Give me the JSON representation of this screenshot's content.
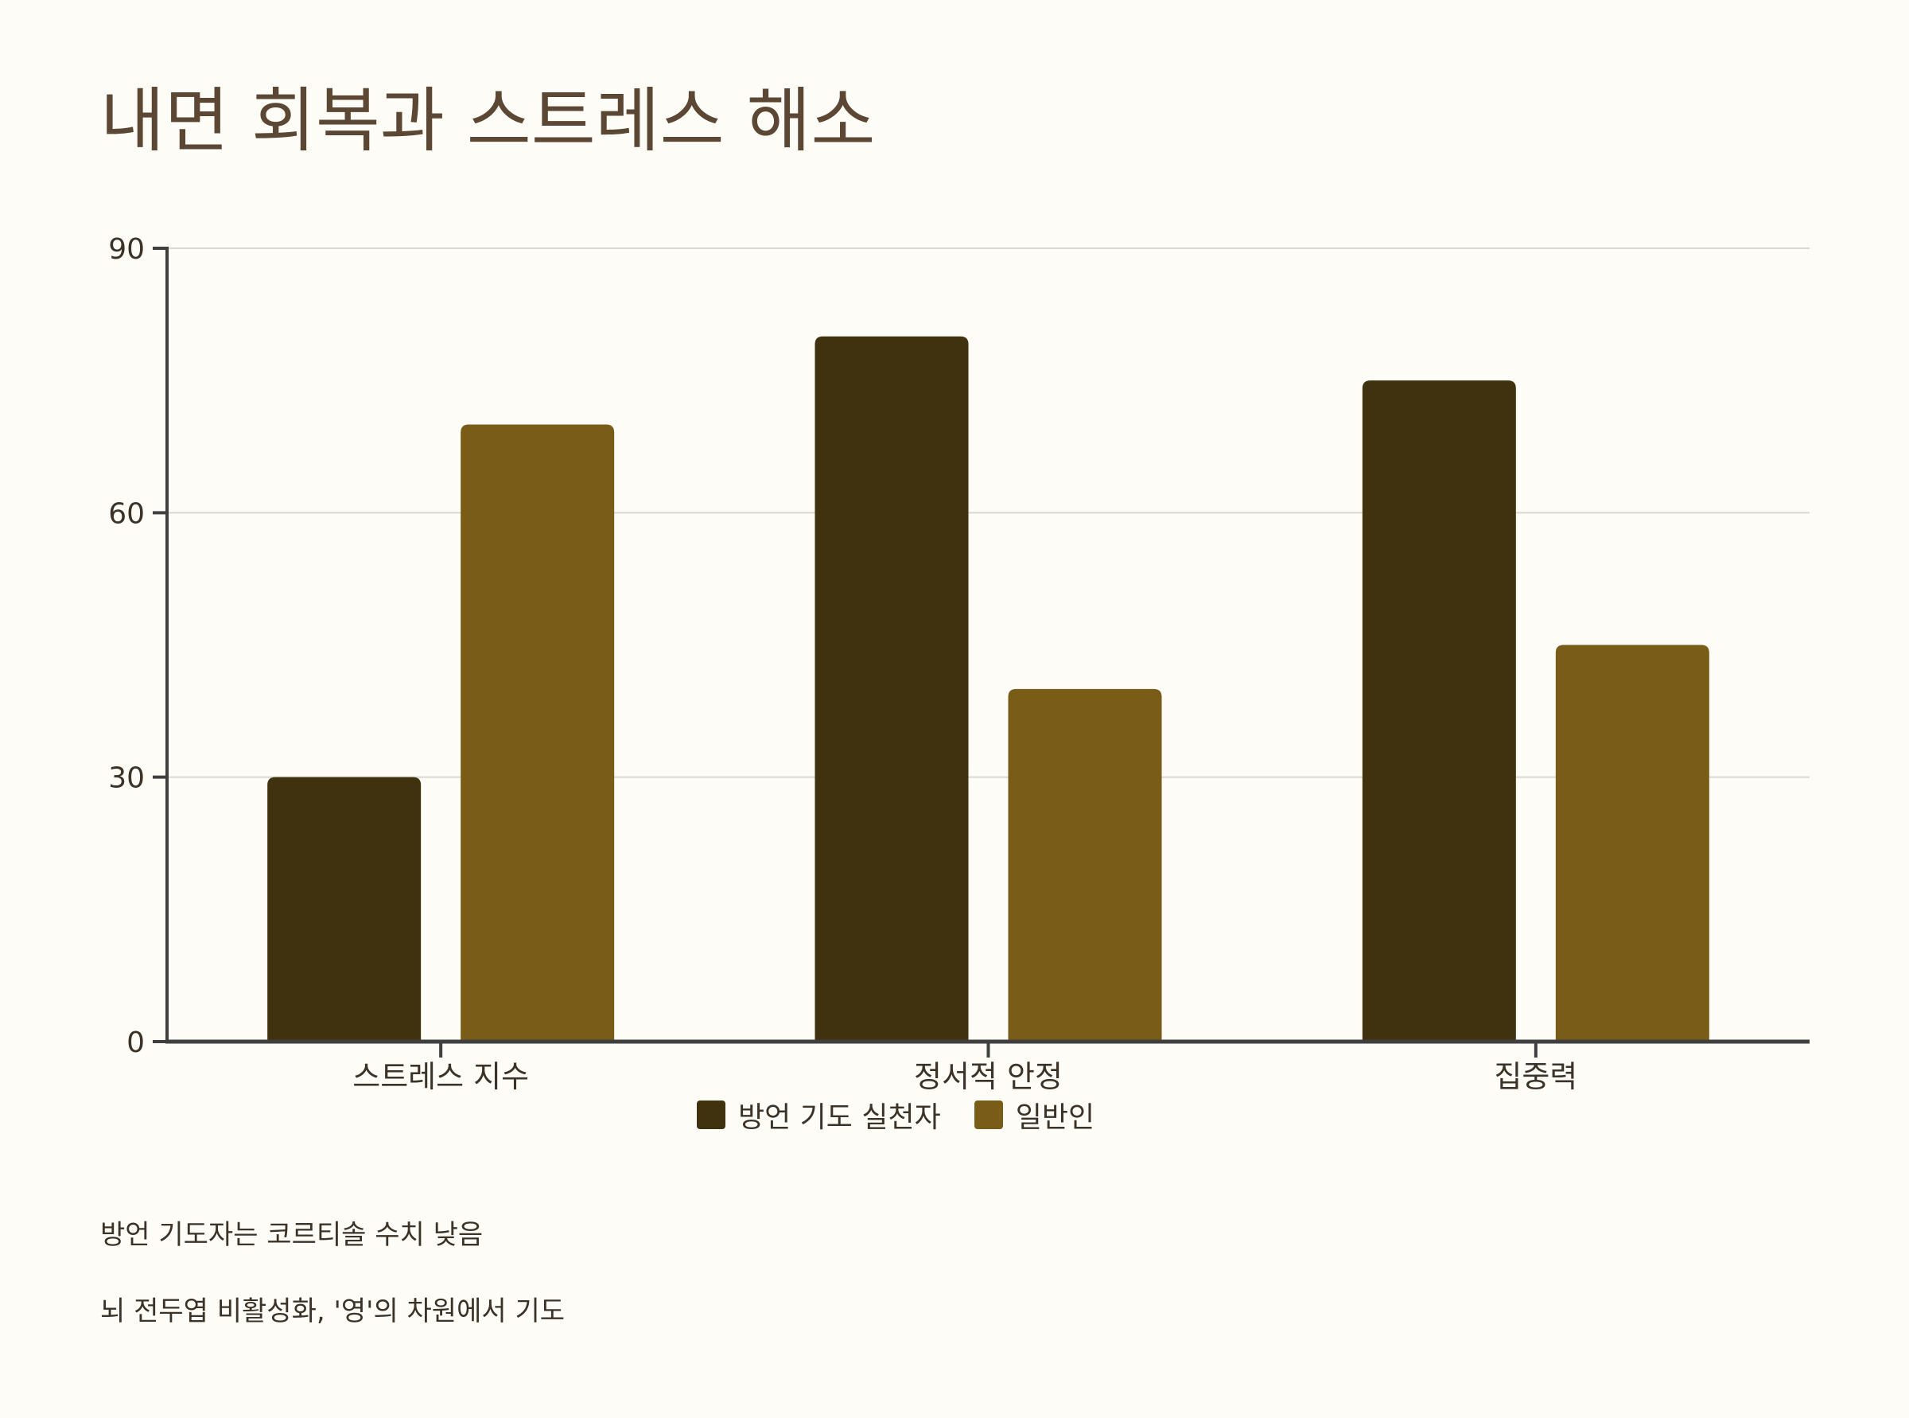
{
  "title": "내면 회복과 스트레스 해소",
  "chart_data": {
    "type": "bar",
    "categories": [
      "스트레스 지수",
      "정서적 안정",
      "집중력"
    ],
    "series": [
      {
        "name": "방언 기도 실천자",
        "values": [
          30,
          80,
          75
        ],
        "color": "#40320f"
      },
      {
        "name": "일반인",
        "values": [
          70,
          40,
          45
        ],
        "color": "#7a5c19"
      }
    ],
    "ylim": [
      0,
      90
    ],
    "yticks": [
      0,
      30,
      60,
      90
    ],
    "grid": true,
    "legend_position": "bottom-center"
  },
  "notes": [
    "방언 기도자는 코르티솔 수치 낮음",
    "뇌 전두엽 비활성화, '영'의 차원에서 기도"
  ]
}
